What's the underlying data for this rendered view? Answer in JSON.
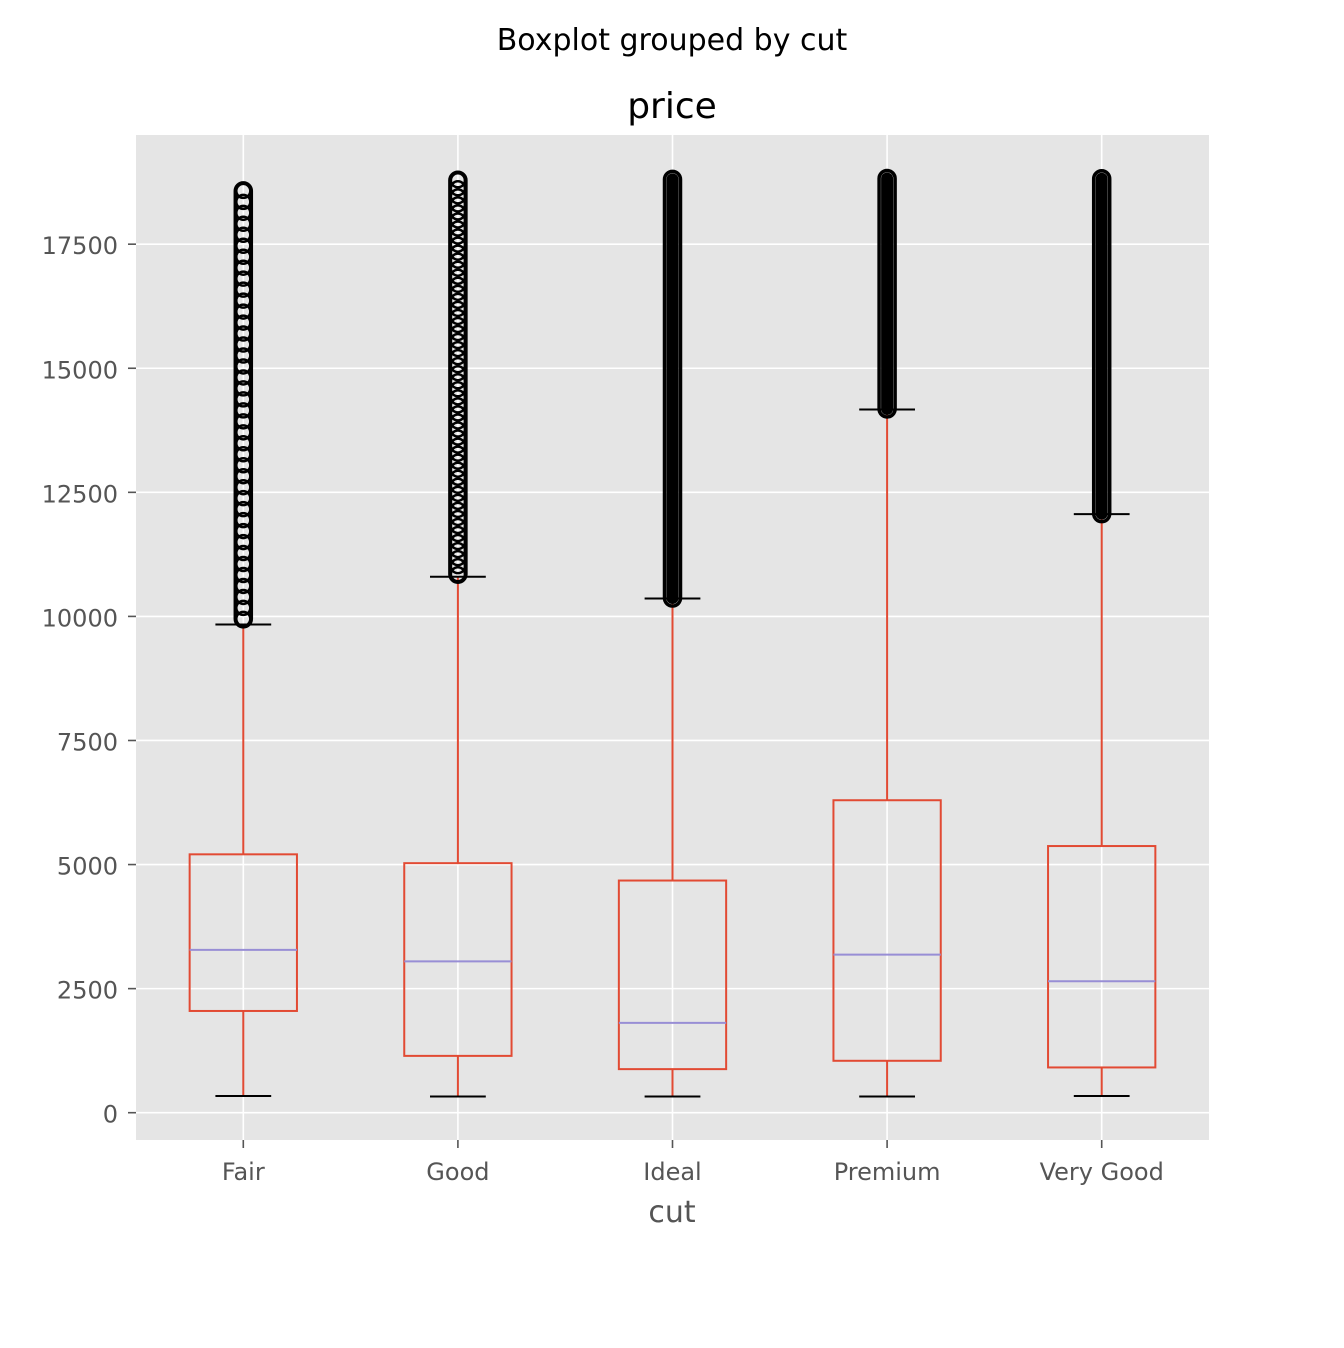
{
  "chart_data": {
    "type": "box",
    "suptitle": "Boxplot grouped by cut",
    "title": "price",
    "xlabel": "cut",
    "ylabel": "",
    "ylim": [
      -550,
      19700
    ],
    "yticks": [
      0,
      2500,
      5000,
      7500,
      10000,
      12500,
      15000,
      17500
    ],
    "ytick_labels": [
      "0",
      "2500",
      "5000",
      "7500",
      "10000",
      "12500",
      "15000",
      "17500"
    ],
    "grid": true,
    "categories": [
      "Fair",
      "Good",
      "Ideal",
      "Premium",
      "Very Good"
    ],
    "boxes": [
      {
        "whisker_low": 337,
        "q1": 2050,
        "median": 3282,
        "q3": 5206,
        "whisker_high": 9836,
        "outliers_min": 9950,
        "outliers_max": 18574
      },
      {
        "whisker_low": 327,
        "q1": 1145,
        "median": 3050,
        "q3": 5028,
        "whisker_high": 10800,
        "outliers_min": 10850,
        "outliers_max": 18788
      },
      {
        "whisker_low": 326,
        "q1": 878,
        "median": 1810,
        "q3": 4678,
        "whisker_high": 10360,
        "outliers_min": 10370,
        "outliers_max": 18806
      },
      {
        "whisker_low": 326,
        "q1": 1046,
        "median": 3185,
        "q3": 6296,
        "whisker_high": 14170,
        "outliers_min": 14180,
        "outliers_max": 18823
      },
      {
        "whisker_low": 336,
        "q1": 912,
        "median": 2648,
        "q3": 5373,
        "whisker_high": 12060,
        "outliers_min": 12070,
        "outliers_max": 18818
      }
    ],
    "colors": {
      "box": "#E24A33",
      "median": "#988ED5",
      "flier": "#000000",
      "caps": "#000000",
      "plot_bg": "#E5E5E5",
      "grid": "#FFFFFF",
      "tick_text": "#555555"
    }
  }
}
